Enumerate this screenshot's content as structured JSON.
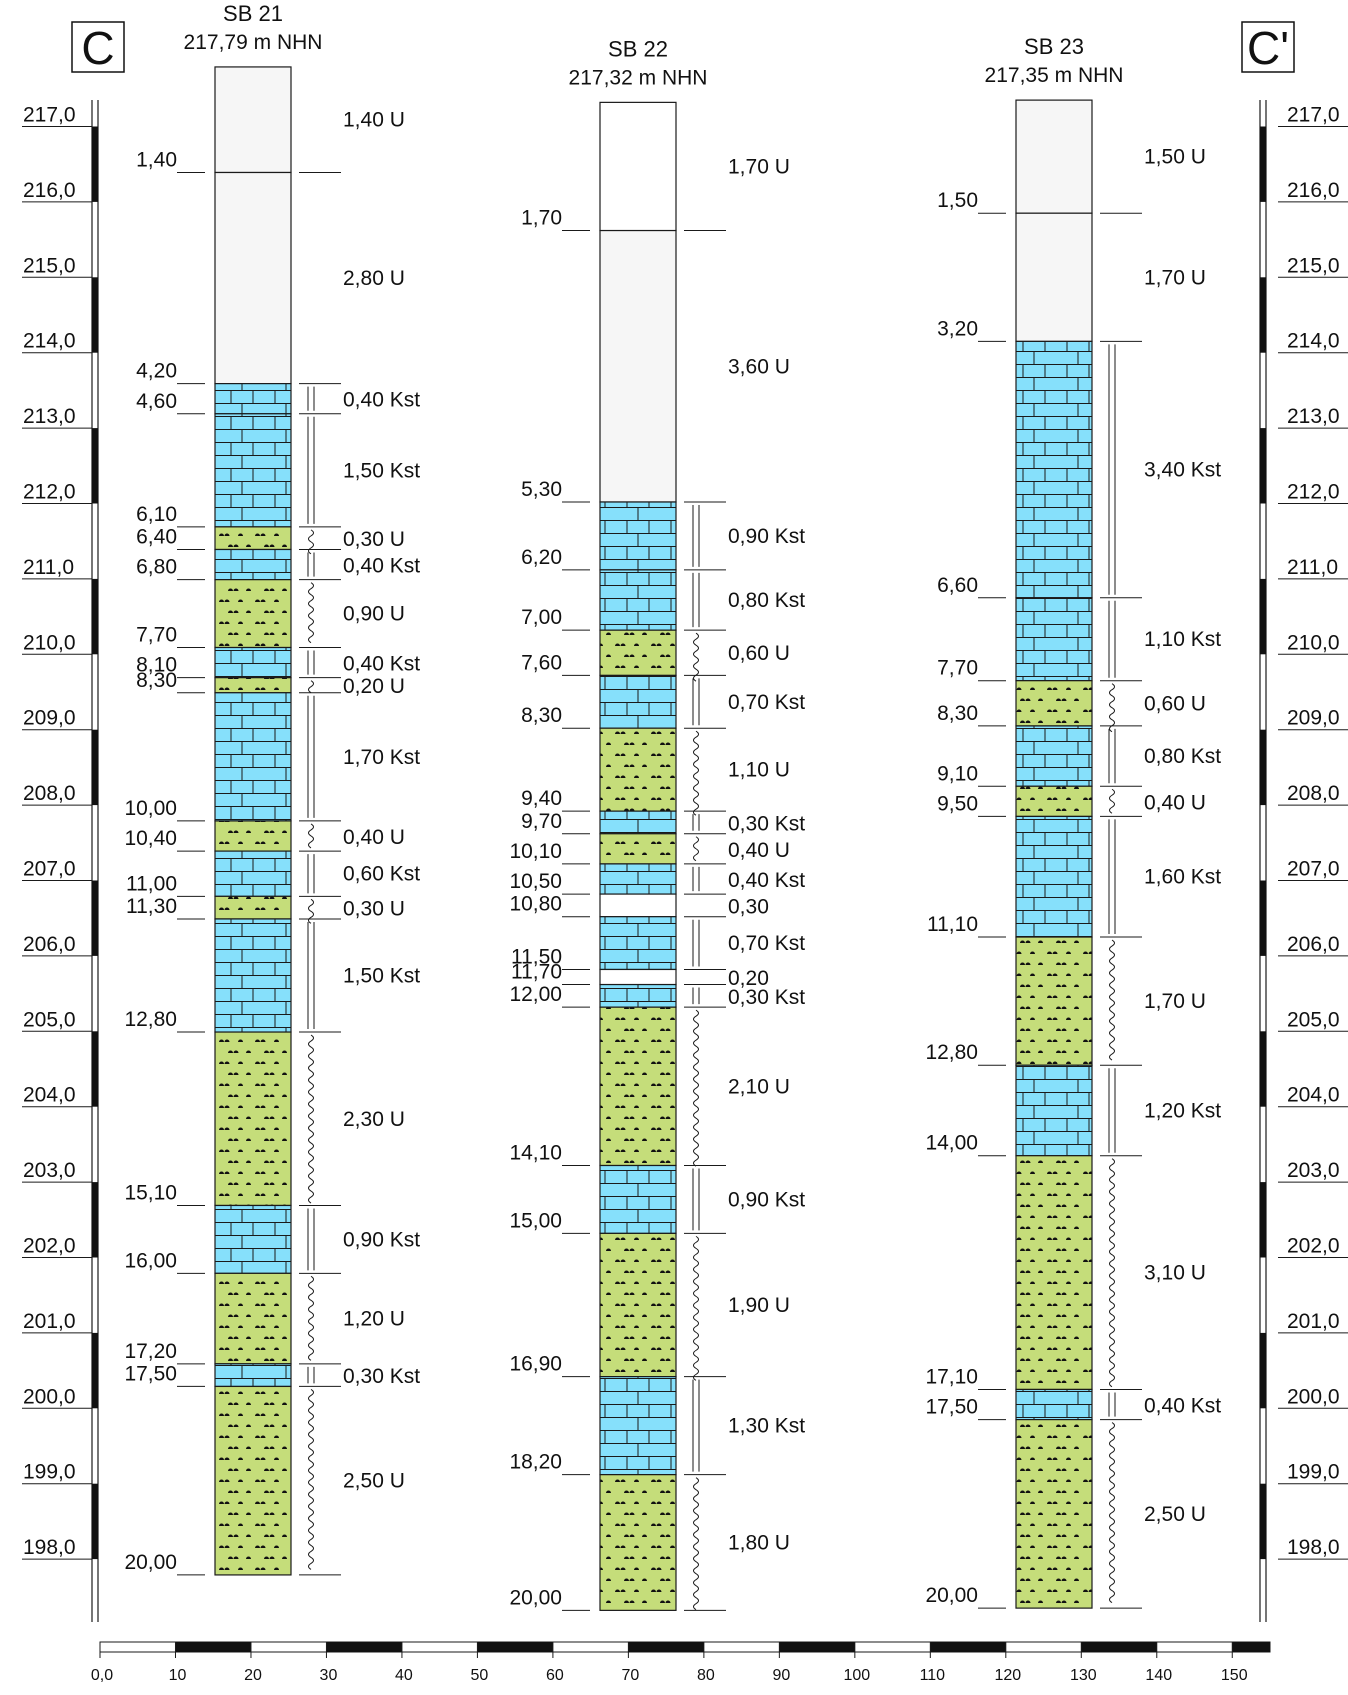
{
  "section": {
    "start_label": "C",
    "end_label": "C'"
  },
  "elevation_axis": {
    "unit": "m NHN",
    "top": 217.79,
    "bottom": 197.0,
    "labels": [
      "217,0",
      "216,0",
      "215,0",
      "214,0",
      "213,0",
      "212,0",
      "211,0",
      "210,0",
      "209,0",
      "208,0",
      "207,0",
      "206,0",
      "205,0",
      "204,0",
      "203,0",
      "202,0",
      "201,0",
      "200,0",
      "199,0",
      "198,0"
    ],
    "label_values": [
      217,
      216,
      215,
      214,
      213,
      212,
      211,
      210,
      209,
      208,
      207,
      206,
      205,
      204,
      203,
      202,
      201,
      200,
      199,
      198
    ]
  },
  "distance_scale": {
    "min": 0,
    "max": 155,
    "labels": [
      "0,0",
      "10",
      "20",
      "30",
      "40",
      "50",
      "60",
      "70",
      "80",
      "90",
      "100",
      "110",
      "120",
      "130",
      "140",
      "150"
    ],
    "label_values": [
      0,
      10,
      20,
      30,
      40,
      50,
      60,
      70,
      80,
      90,
      100,
      110,
      120,
      130,
      140,
      150
    ]
  },
  "colors": {
    "clay_U": "#c5dd7a",
    "limestone_Kst": "#86e0fb",
    "fill": "#f6f6f6",
    "blank": "#ffffff",
    "line": "#1a1a1a"
  },
  "boreholes": [
    {
      "name": "SB 21",
      "elevation_label": "217,79 m NHN",
      "ground_elevation": 217.79,
      "layers": [
        {
          "bottom": 1.4,
          "depth_label": "1,40",
          "thickness_label": "1,40 U",
          "type": "fill"
        },
        {
          "bottom": 4.2,
          "depth_label": "4,20",
          "thickness_label": "2,80 U",
          "type": "fill"
        },
        {
          "bottom": 4.6,
          "depth_label": "4,60",
          "thickness_label": "0,40 Kst",
          "type": "Kst"
        },
        {
          "bottom": 6.1,
          "depth_label": "6,10",
          "thickness_label": "1,50 Kst",
          "type": "Kst"
        },
        {
          "bottom": 6.4,
          "depth_label": "6,40",
          "thickness_label": "0,30 U",
          "type": "U"
        },
        {
          "bottom": 6.8,
          "depth_label": "6,80",
          "thickness_label": "0,40 Kst",
          "type": "Kst"
        },
        {
          "bottom": 7.7,
          "depth_label": "7,70",
          "thickness_label": "0,90 U",
          "type": "U"
        },
        {
          "bottom": 8.1,
          "depth_label": "8,10",
          "thickness_label": "0,40 Kst",
          "type": "Kst"
        },
        {
          "bottom": 8.3,
          "depth_label": "8,30",
          "thickness_label": "0,20 U",
          "type": "U"
        },
        {
          "bottom": 10.0,
          "depth_label": "10,00",
          "thickness_label": "1,70 Kst",
          "type": "Kst"
        },
        {
          "bottom": 10.4,
          "depth_label": "10,40",
          "thickness_label": "0,40 U",
          "type": "U"
        },
        {
          "bottom": 11.0,
          "depth_label": "11,00",
          "thickness_label": "0,60 Kst",
          "type": "Kst"
        },
        {
          "bottom": 11.3,
          "depth_label": "11,30",
          "thickness_label": "0,30 U",
          "type": "U"
        },
        {
          "bottom": 12.8,
          "depth_label": "12,80",
          "thickness_label": "1,50 Kst",
          "type": "Kst"
        },
        {
          "bottom": 15.1,
          "depth_label": "15,10",
          "thickness_label": "2,30 U",
          "type": "U"
        },
        {
          "bottom": 16.0,
          "depth_label": "16,00",
          "thickness_label": "0,90 Kst",
          "type": "Kst"
        },
        {
          "bottom": 17.2,
          "depth_label": "17,20",
          "thickness_label": "1,20 U",
          "type": "U"
        },
        {
          "bottom": 17.5,
          "depth_label": "17,50",
          "thickness_label": "0,30 Kst",
          "type": "Kst"
        },
        {
          "bottom": 20.0,
          "depth_label": "20,00",
          "thickness_label": "2,50 U",
          "type": "U"
        }
      ]
    },
    {
      "name": "SB 22",
      "elevation_label": "217,32 m NHN",
      "ground_elevation": 217.32,
      "layers": [
        {
          "bottom": 1.7,
          "depth_label": "1,70",
          "thickness_label": "1,70 U",
          "type": "blank"
        },
        {
          "bottom": 5.3,
          "depth_label": "5,30",
          "thickness_label": "3,60 U",
          "type": "fill"
        },
        {
          "bottom": 6.2,
          "depth_label": "6,20",
          "thickness_label": "0,90 Kst",
          "type": "Kst"
        },
        {
          "bottom": 7.0,
          "depth_label": "7,00",
          "thickness_label": "0,80 Kst",
          "type": "Kst"
        },
        {
          "bottom": 7.6,
          "depth_label": "7,60",
          "thickness_label": "0,60 U",
          "type": "U"
        },
        {
          "bottom": 8.3,
          "depth_label": "8,30",
          "thickness_label": "0,70 Kst",
          "type": "Kst"
        },
        {
          "bottom": 9.4,
          "depth_label": "9,40",
          "thickness_label": "1,10 U",
          "type": "U"
        },
        {
          "bottom": 9.7,
          "depth_label": "9,70",
          "thickness_label": "0,30 Kst",
          "type": "Kst"
        },
        {
          "bottom": 10.1,
          "depth_label": "10,10",
          "thickness_label": "0,40 U",
          "type": "U"
        },
        {
          "bottom": 10.5,
          "depth_label": "10,50",
          "thickness_label": "0,40 Kst",
          "type": "Kst"
        },
        {
          "bottom": 10.8,
          "depth_label": "10,80",
          "thickness_label": "0,30",
          "type": "blank"
        },
        {
          "bottom": 11.5,
          "depth_label": "11,50",
          "thickness_label": "0,70 Kst",
          "type": "Kst"
        },
        {
          "bottom": 11.7,
          "depth_label": "11,70",
          "thickness_label": "0,20",
          "type": "blank"
        },
        {
          "bottom": 12.0,
          "depth_label": "12,00",
          "thickness_label": "0,30 Kst",
          "type": "Kst"
        },
        {
          "bottom": 14.1,
          "depth_label": "14,10",
          "thickness_label": "2,10 U",
          "type": "U"
        },
        {
          "bottom": 15.0,
          "depth_label": "15,00",
          "thickness_label": "0,90 Kst",
          "type": "Kst"
        },
        {
          "bottom": 16.9,
          "depth_label": "16,90",
          "thickness_label": "1,90 U",
          "type": "U"
        },
        {
          "bottom": 18.2,
          "depth_label": "18,20",
          "thickness_label": "1,30 Kst",
          "type": "Kst"
        },
        {
          "bottom": 20.0,
          "depth_label": "20,00",
          "thickness_label": "1,80 U",
          "type": "U"
        }
      ]
    },
    {
      "name": "SB 23",
      "elevation_label": "217,35 m NHN",
      "ground_elevation": 217.35,
      "layers": [
        {
          "bottom": 1.5,
          "depth_label": "1,50",
          "thickness_label": "1,50 U",
          "type": "fill"
        },
        {
          "bottom": 3.2,
          "depth_label": "3,20",
          "thickness_label": "1,70 U",
          "type": "fill"
        },
        {
          "bottom": 6.6,
          "depth_label": "6,60",
          "thickness_label": "3,40 Kst",
          "type": "Kst"
        },
        {
          "bottom": 7.7,
          "depth_label": "7,70",
          "thickness_label": "1,10 Kst",
          "type": "Kst"
        },
        {
          "bottom": 8.3,
          "depth_label": "8,30",
          "thickness_label": "0,60 U",
          "type": "U"
        },
        {
          "bottom": 9.1,
          "depth_label": "9,10",
          "thickness_label": "0,80 Kst",
          "type": "Kst"
        },
        {
          "bottom": 9.5,
          "depth_label": "9,50",
          "thickness_label": "0,40 U",
          "type": "U"
        },
        {
          "bottom": 11.1,
          "depth_label": "11,10",
          "thickness_label": "1,60 Kst",
          "type": "Kst"
        },
        {
          "bottom": 12.8,
          "depth_label": "12,80",
          "thickness_label": "1,70 U",
          "type": "U"
        },
        {
          "bottom": 14.0,
          "depth_label": "14,00",
          "thickness_label": "1,20 Kst",
          "type": "Kst"
        },
        {
          "bottom": 17.1,
          "depth_label": "17,10",
          "thickness_label": "3,10 U",
          "type": "U"
        },
        {
          "bottom": 17.5,
          "depth_label": "17,50",
          "thickness_label": "0,40 Kst",
          "type": "Kst"
        },
        {
          "bottom": 20.0,
          "depth_label": "20,00",
          "thickness_label": "2,50 U",
          "type": "U"
        }
      ]
    }
  ]
}
